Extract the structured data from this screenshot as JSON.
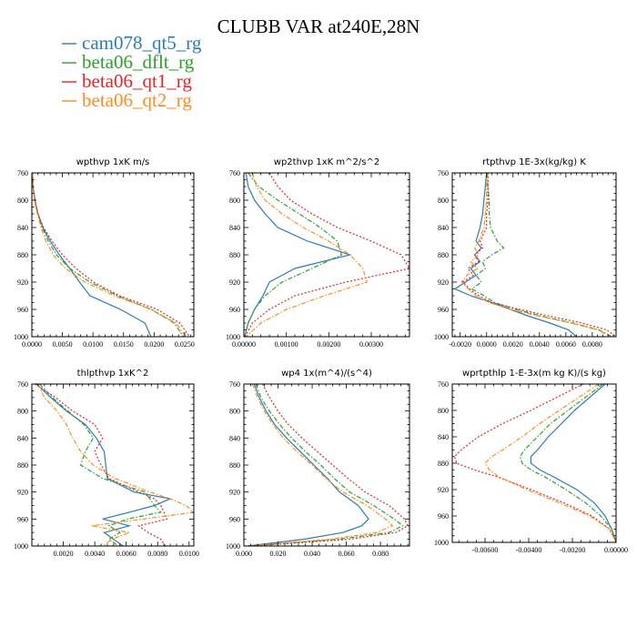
{
  "page": {
    "title": "CLUBB VAR at240E,28N"
  },
  "legend": {
    "entries": [
      {
        "label": "cam078_qt5_rg",
        "color": "#2d7bb6",
        "dash": "solid"
      },
      {
        "label": "beta06_dflt_rg",
        "color": "#2ca02c",
        "dash": "dashdot"
      },
      {
        "label": "beta06_qt1_rg",
        "color": "#e3242b",
        "dash": "dotted"
      },
      {
        "label": "beta06_qt2_rg",
        "color": "#ff8c1a",
        "dash": "dashdot"
      }
    ]
  },
  "chart_data": [
    {
      "type": "line",
      "title": "wpthvp   1xK m/s",
      "xlim": [
        0,
        0.0265
      ],
      "ylim": [
        760,
        1000
      ],
      "y_inverted": true,
      "x_ticks": [
        0,
        0.005,
        0.01,
        0.015,
        0.02,
        0.025
      ],
      "x_tick_labels": [
        "0.0000",
        "0.0050",
        "0.0100",
        "0.0150",
        "0.0200",
        "0.0250"
      ],
      "y_ticks": [
        760,
        800,
        840,
        880,
        920,
        960,
        1000
      ],
      "y_tick_labels": [
        "760",
        "800",
        "840",
        "880",
        "920",
        "960",
        "1000"
      ],
      "y": [
        760,
        780,
        800,
        820,
        840,
        860,
        880,
        900,
        920,
        940,
        960,
        980,
        1000
      ],
      "series": [
        {
          "name": "cam078_qt5_rg",
          "x": [
            0.0001,
            0.0002,
            0.0005,
            0.001,
            0.0018,
            0.003,
            0.0045,
            0.0062,
            0.0078,
            0.0095,
            0.0145,
            0.0185,
            0.0195
          ]
        },
        {
          "name": "beta06_dflt_rg",
          "x": [
            0.0001,
            0.0002,
            0.0005,
            0.001,
            0.0017,
            0.0027,
            0.004,
            0.0062,
            0.0095,
            0.014,
            0.0195,
            0.0233,
            0.0248
          ]
        },
        {
          "name": "beta06_qt1_rg",
          "x": [
            0.0001,
            0.0002,
            0.0005,
            0.001,
            0.0019,
            0.0033,
            0.005,
            0.0072,
            0.0101,
            0.0143,
            0.0205,
            0.0242,
            0.0258
          ]
        },
        {
          "name": "beta06_qt2_rg",
          "x": [
            0.0001,
            0.0002,
            0.0004,
            0.0009,
            0.0015,
            0.0023,
            0.0035,
            0.0055,
            0.0087,
            0.0135,
            0.0195,
            0.0236,
            0.0252
          ]
        }
      ]
    },
    {
      "type": "line",
      "title": "wp2thvp   1xK m^2/s^2",
      "xlim": [
        0,
        0.0039
      ],
      "ylim": [
        760,
        1000
      ],
      "y_inverted": true,
      "x_ticks": [
        0,
        0.001,
        0.002,
        0.003
      ],
      "x_tick_labels": [
        "0.00000",
        "0.00100",
        "0.00200",
        "0.00300"
      ],
      "y_ticks": [
        760,
        800,
        840,
        880,
        920,
        960,
        1000
      ],
      "y_tick_labels": [
        "760",
        "800",
        "840",
        "880",
        "920",
        "960",
        "1000"
      ],
      "y": [
        760,
        780,
        800,
        820,
        840,
        860,
        880,
        900,
        920,
        940,
        960,
        980,
        1000
      ],
      "series": [
        {
          "name": "cam078_qt5_rg",
          "x": [
            5e-05,
            0.0001,
            0.00025,
            0.0005,
            0.0008,
            0.0015,
            0.0025,
            0.0012,
            0.0006,
            0.00045,
            0.00025,
            0.0001,
            2e-05
          ]
        },
        {
          "name": "beta06_dflt_rg",
          "x": [
            0.0001,
            0.00035,
            0.0008,
            0.0013,
            0.0018,
            0.0022,
            0.0023,
            0.0016,
            0.0009,
            0.0005,
            0.00025,
            0.0001,
            2e-05
          ]
        },
        {
          "name": "beta06_qt1_rg",
          "x": [
            0.0006,
            0.0008,
            0.0011,
            0.0016,
            0.0022,
            0.003,
            0.0037,
            0.0039,
            0.0024,
            0.0012,
            0.0006,
            0.0002,
            3e-05
          ]
        },
        {
          "name": "beta06_qt2_rg",
          "x": [
            0.0002,
            0.0003,
            0.0005,
            0.0009,
            0.0014,
            0.002,
            0.0025,
            0.0028,
            0.0029,
            0.0019,
            0.001,
            0.0004,
            5e-05
          ]
        }
      ]
    },
    {
      "type": "line",
      "title": "rtpthvp   1E-3x(kg/kg) K",
      "xlim": [
        -0.0026,
        0.0098
      ],
      "ylim": [
        760,
        1000
      ],
      "y_inverted": true,
      "x_ticks": [
        -0.002,
        0,
        0.002,
        0.004,
        0.006,
        0.008
      ],
      "x_tick_labels": [
        "-0.0020",
        "0.0000",
        "0.0020",
        "0.0040",
        "0.0060",
        "0.0080"
      ],
      "y_ticks": [
        760,
        800,
        840,
        880,
        920,
        960,
        1000
      ],
      "y_tick_labels": [
        "760",
        "800",
        "840",
        "880",
        "920",
        "960",
        "1000"
      ],
      "y": [
        760,
        780,
        800,
        820,
        840,
        860,
        870,
        880,
        890,
        900,
        910,
        920,
        930,
        940,
        950,
        960,
        970,
        980,
        990,
        1000
      ],
      "series": [
        {
          "name": "cam078_qt5_rg",
          "x": [
            0.0,
            -0.0001,
            -0.0002,
            -0.0003,
            -0.0005,
            -0.0008,
            -0.0004,
            -0.0009,
            -0.0005,
            -0.0012,
            -0.0008,
            -0.0016,
            -0.0024,
            -0.0012,
            0.0004,
            0.0018,
            0.0032,
            0.0048,
            0.0062,
            0.0068
          ]
        },
        {
          "name": "beta06_dflt_rg",
          "x": [
            0.0,
            0.0001,
            0.0002,
            0.0002,
            0.0003,
            0.0008,
            0.0013,
            0.0004,
            -0.0003,
            -0.0001,
            -0.0008,
            -0.0004,
            -0.0011,
            -0.0002,
            0.0006,
            0.0022,
            0.0042,
            0.0065,
            0.0085,
            0.0095
          ]
        },
        {
          "name": "beta06_qt1_rg",
          "x": [
            0.0001,
            0.0001,
            0.0001,
            0.0,
            0.0,
            -0.0005,
            -0.0003,
            -0.0009,
            -0.0006,
            -0.0014,
            -0.001,
            -0.0018,
            -0.0013,
            -0.0006,
            0.0004,
            0.0025,
            0.0048,
            0.0072,
            0.0091,
            0.0098
          ]
        },
        {
          "name": "beta06_qt2_rg",
          "x": [
            0.0001,
            0.0,
            0.0,
            -0.0001,
            -0.0002,
            -0.0006,
            -0.0009,
            -0.0006,
            -0.0012,
            -0.0007,
            -0.0015,
            -0.0019,
            -0.0014,
            -0.0008,
            0.0002,
            0.0018,
            0.004,
            0.0064,
            0.0084,
            0.0094
          ]
        }
      ]
    },
    {
      "type": "line",
      "title": "thlpthvp   1xK^2",
      "xlim": [
        0,
        0.0103
      ],
      "ylim": [
        760,
        1000
      ],
      "y_inverted": true,
      "x_ticks": [
        0.002,
        0.004,
        0.006,
        0.008,
        0.01
      ],
      "x_tick_labels": [
        "0.0020",
        "0.0040",
        "0.0060",
        "0.0080",
        "0.0100"
      ],
      "y_ticks": [
        760,
        800,
        840,
        880,
        920,
        960,
        1000
      ],
      "y_tick_labels": [
        "760",
        "800",
        "840",
        "880",
        "920",
        "960",
        "1000"
      ],
      "y": [
        760,
        780,
        800,
        820,
        840,
        860,
        880,
        900,
        920,
        930,
        940,
        950,
        960,
        970,
        980,
        990,
        1000
      ],
      "series": [
        {
          "name": "cam078_qt5_rg",
          "x": [
            0.0003,
            0.0012,
            0.0022,
            0.0034,
            0.0041,
            0.0046,
            0.0047,
            0.0048,
            0.0065,
            0.0088,
            0.0078,
            0.0062,
            0.0045,
            0.0062,
            0.0046,
            0.0052,
            0.0058
          ]
        },
        {
          "name": "beta06_dflt_rg",
          "x": [
            0.0005,
            0.0013,
            0.0023,
            0.0033,
            0.0039,
            0.0034,
            0.0031,
            0.0045,
            0.0072,
            0.0075,
            0.0078,
            0.0082,
            0.0061,
            0.0049,
            0.0056,
            0.0049,
            0.0055
          ]
        },
        {
          "name": "beta06_qt1_rg",
          "x": [
            0.0002,
            0.0015,
            0.0026,
            0.004,
            0.0045,
            0.004,
            0.0044,
            0.0049,
            0.0068,
            0.0078,
            0.0082,
            0.0084,
            0.0086,
            0.0068,
            0.0074,
            0.0082,
            0.0085
          ]
        },
        {
          "name": "beta06_qt2_rg",
          "x": [
            0.0004,
            0.0008,
            0.0016,
            0.0022,
            0.0026,
            0.0031,
            0.0039,
            0.0053,
            0.0075,
            0.0088,
            0.0098,
            0.0103,
            0.0071,
            0.0038,
            0.0062,
            0.0051,
            0.0045
          ]
        }
      ]
    },
    {
      "type": "line",
      "title": "wp4   1x(m^4)/(s^4)",
      "xlim": [
        0,
        0.097
      ],
      "ylim": [
        760,
        1000
      ],
      "y_inverted": true,
      "x_ticks": [
        0,
        0.02,
        0.04,
        0.06,
        0.08
      ],
      "x_tick_labels": [
        "0.000",
        "0.020",
        "0.040",
        "0.060",
        "0.080"
      ],
      "y_ticks": [
        760,
        800,
        840,
        880,
        920,
        960,
        1000
      ],
      "y_tick_labels": [
        "760",
        "800",
        "840",
        "880",
        "920",
        "960",
        "1000"
      ],
      "y": [
        760,
        780,
        800,
        820,
        840,
        860,
        880,
        900,
        920,
        940,
        960,
        970,
        980,
        990,
        1000
      ],
      "series": [
        {
          "name": "cam078_qt5_rg",
          "x": [
            0.006,
            0.009,
            0.013,
            0.018,
            0.025,
            0.033,
            0.041,
            0.049,
            0.056,
            0.067,
            0.073,
            0.069,
            0.058,
            0.035,
            0.002
          ]
        },
        {
          "name": "beta06_dflt_rg",
          "x": [
            0.007,
            0.01,
            0.015,
            0.021,
            0.028,
            0.036,
            0.045,
            0.053,
            0.062,
            0.076,
            0.088,
            0.093,
            0.085,
            0.055,
            0.003
          ]
        },
        {
          "name": "beta06_qt1_rg",
          "x": [
            0.011,
            0.015,
            0.02,
            0.026,
            0.034,
            0.043,
            0.052,
            0.061,
            0.071,
            0.085,
            0.094,
            0.096,
            0.089,
            0.062,
            0.004
          ]
        },
        {
          "name": "beta06_qt2_rg",
          "x": [
            0.005,
            0.008,
            0.012,
            0.017,
            0.023,
            0.031,
            0.04,
            0.048,
            0.058,
            0.072,
            0.083,
            0.087,
            0.078,
            0.05,
            0.003
          ]
        }
      ]
    },
    {
      "type": "line",
      "title": "wprtpthlp   1-E-3x(m kg K)/(s kg)",
      "xlim": [
        -0.0075,
        0
      ],
      "ylim": [
        760,
        1000
      ],
      "y_inverted": true,
      "x_ticks": [
        -0.006,
        -0.004,
        -0.002,
        0
      ],
      "x_tick_labels": [
        "-0.00600",
        "-0.00400",
        "-0.00200",
        "0.00000"
      ],
      "y_ticks": [
        760,
        800,
        840,
        880,
        920,
        960,
        1000
      ],
      "y_tick_labels": [
        "760",
        "800",
        "840",
        "880",
        "920",
        "960",
        "1000"
      ],
      "y": [
        760,
        780,
        800,
        820,
        840,
        860,
        870,
        880,
        890,
        900,
        920,
        940,
        960,
        980,
        1000
      ],
      "series": [
        {
          "name": "cam078_qt5_rg",
          "x": [
            -0.0005,
            -0.0012,
            -0.0019,
            -0.0025,
            -0.0031,
            -0.0036,
            -0.0039,
            -0.0039,
            -0.0035,
            -0.0029,
            -0.0018,
            -0.001,
            -0.0005,
            -0.0002,
            0.0
          ]
        },
        {
          "name": "beta06_dflt_rg",
          "x": [
            -0.0006,
            -0.0014,
            -0.0022,
            -0.003,
            -0.0036,
            -0.0042,
            -0.0044,
            -0.0043,
            -0.0039,
            -0.0033,
            -0.0023,
            -0.0014,
            -0.0007,
            -0.0002,
            0.0
          ]
        },
        {
          "name": "beta06_qt1_rg",
          "x": [
            -0.0015,
            -0.0027,
            -0.0039,
            -0.0052,
            -0.0063,
            -0.0071,
            -0.0074,
            -0.0073,
            -0.0065,
            -0.0055,
            -0.0039,
            -0.0024,
            -0.0011,
            -0.0003,
            0.0
          ]
        },
        {
          "name": "beta06_qt2_rg",
          "x": [
            -0.0008,
            -0.0017,
            -0.0026,
            -0.0035,
            -0.0043,
            -0.0052,
            -0.0057,
            -0.006,
            -0.0058,
            -0.0054,
            -0.0041,
            -0.0026,
            -0.0012,
            -0.0003,
            0.0
          ]
        }
      ]
    }
  ]
}
